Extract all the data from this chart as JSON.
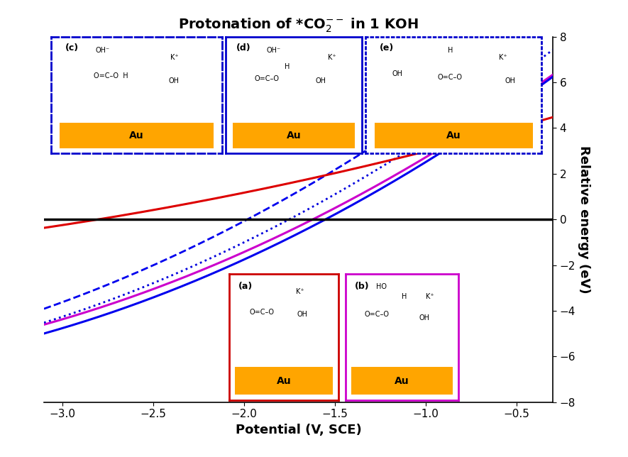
{
  "title": "Protonation of *CO$_2^{--}$ in 1 KOH",
  "xlabel": "Potential (V, SCE)",
  "ylabel": "Relative energy (eV)",
  "xlim": [
    -3.1,
    -0.3
  ],
  "ylim": [
    -8,
    8
  ],
  "xticks": [
    -3,
    -2.5,
    -2,
    -1.5,
    -1,
    -0.5
  ],
  "yticks": [
    -8,
    -6,
    -4,
    -2,
    0,
    2,
    4,
    6,
    8
  ],
  "x_start": -3.1,
  "x_end": -0.3,
  "lines": [
    {
      "label": "magenta",
      "color": "#cc00cc",
      "style": "solid",
      "lw": 2.2,
      "a": 4.0,
      "b": 2.5,
      "x0": -1.62
    },
    {
      "label": "blue_solid",
      "color": "#0000ee",
      "style": "solid",
      "lw": 2.2,
      "a": 4.2,
      "b": 2.5,
      "x0": -1.55
    },
    {
      "label": "blue_dashed",
      "color": "#0000ee",
      "style": "dashed",
      "lw": 2.0,
      "a": 4.2,
      "b": 2.5,
      "x0": -1.98
    },
    {
      "label": "blue_dotted",
      "color": "#0000dd",
      "style": "dotted",
      "lw": 2.0,
      "a": 4.2,
      "b": 2.5,
      "x0": -1.75
    },
    {
      "label": "red",
      "color": "#dd0000",
      "style": "solid",
      "lw": 2.2,
      "a": 1.3,
      "b": 1.5,
      "x0": -2.8
    }
  ],
  "hline_color": "#000000",
  "hline_lw": 2.5,
  "bg_color": "#ffffff",
  "au_color": "#FFA500"
}
